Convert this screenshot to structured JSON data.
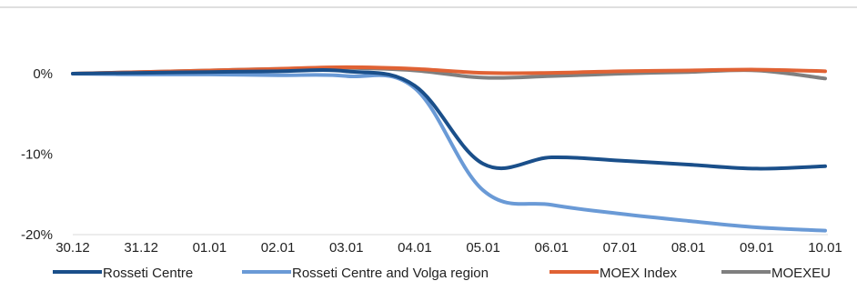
{
  "chart_data": {
    "type": "line",
    "title": "",
    "xlabel": "",
    "ylabel": "",
    "x": [
      "30.12",
      "31.12",
      "01.01",
      "02.01",
      "03.01",
      "04.01",
      "05.01",
      "06.01",
      "07.01",
      "08.01",
      "09.01",
      "10.01"
    ],
    "y_ticks": [
      {
        "value": 0,
        "label": "0%"
      },
      {
        "value": -10,
        "label": "-10%"
      },
      {
        "value": -20,
        "label": "-20%"
      }
    ],
    "ylim": [
      -20,
      8
    ],
    "grid": false,
    "legend_position": "bottom",
    "series": [
      {
        "name": "Rosseti Centre",
        "color": "#1a4f8a",
        "values": [
          0,
          0.1,
          0.2,
          0.3,
          0.3,
          -1.5,
          -11.2,
          -10.4,
          -10.8,
          -11.3,
          -11.8,
          -11.5
        ]
      },
      {
        "name": "Rosseti Centre and Volga region",
        "color": "#6a9ad6",
        "values": [
          0,
          -0.1,
          -0.1,
          -0.2,
          -0.3,
          -1.8,
          -14.5,
          -16.3,
          -17.4,
          -18.3,
          -19.1,
          -19.5
        ]
      },
      {
        "name": "MOEX Index",
        "color": "#e06234",
        "values": [
          0,
          0.2,
          0.4,
          0.6,
          0.8,
          0.6,
          0.1,
          0.1,
          0.3,
          0.4,
          0.5,
          0.3
        ]
      },
      {
        "name": "MOEXEU",
        "color": "#7f7f7f",
        "values": [
          0,
          0.2,
          0.4,
          0.6,
          0.7,
          0.4,
          -0.5,
          -0.3,
          0.0,
          0.2,
          0.4,
          -0.6
        ]
      }
    ]
  }
}
